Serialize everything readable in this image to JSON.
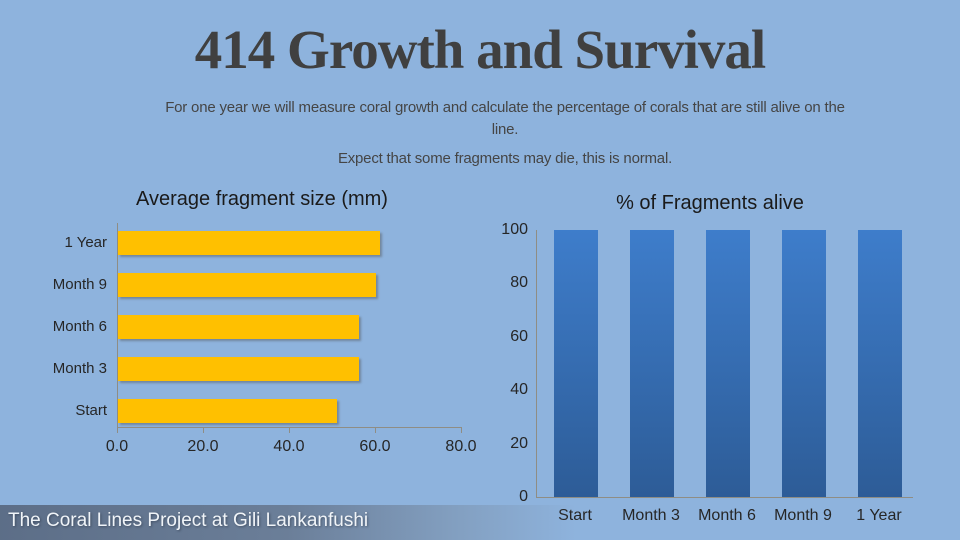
{
  "slide": {
    "title": "414 Growth and Survival",
    "subtitle_line1": "For one year we will measure coral growth and calculate the percentage of corals that are still alive on the line.",
    "subtitle_line2": "Expect that some fragments may die, this is normal.",
    "footer": "The Coral Lines Project at Gili Lankanfushi"
  },
  "colors": {
    "background": "#8EB3DD",
    "title_text": "#404040",
    "subtitle_text": "#454545",
    "chart_title_text": "#1A1A1A",
    "label_text": "#262626",
    "axis_line": "#8F8D84",
    "gold_bar": "#FFC000",
    "blue_bar_top": "#3E7DCB",
    "blue_bar_bottom": "#2D5C97",
    "footer_text": "#F0F4F8"
  },
  "chart_data": [
    {
      "type": "bar",
      "orientation": "horizontal",
      "title": "Average fragment size (mm)",
      "categories": [
        "Start",
        "Month 3",
        "Month 6",
        "Month 9",
        "1 Year"
      ],
      "values": [
        51,
        56,
        56,
        60,
        61
      ],
      "xlabel": "",
      "ylabel": "",
      "xlim": [
        0,
        80
      ],
      "x_ticks": [
        "0.0",
        "20.0",
        "40.0",
        "60.0",
        "80.0"
      ],
      "grid": false,
      "legend": "none",
      "bar_color": "#FFC000"
    },
    {
      "type": "bar",
      "orientation": "vertical",
      "title": "% of Fragments alive",
      "categories": [
        "Start",
        "Month 3",
        "Month 6",
        "Month 9",
        "1 Year"
      ],
      "values": [
        100,
        100,
        100,
        100,
        100
      ],
      "xlabel": "",
      "ylabel": "",
      "ylim": [
        0,
        100
      ],
      "y_ticks": [
        "0",
        "20",
        "40",
        "60",
        "80",
        "100"
      ],
      "grid": false,
      "legend": "none",
      "bar_color_top": "#3E7DCB",
      "bar_color_bottom": "#2D5C97"
    }
  ]
}
